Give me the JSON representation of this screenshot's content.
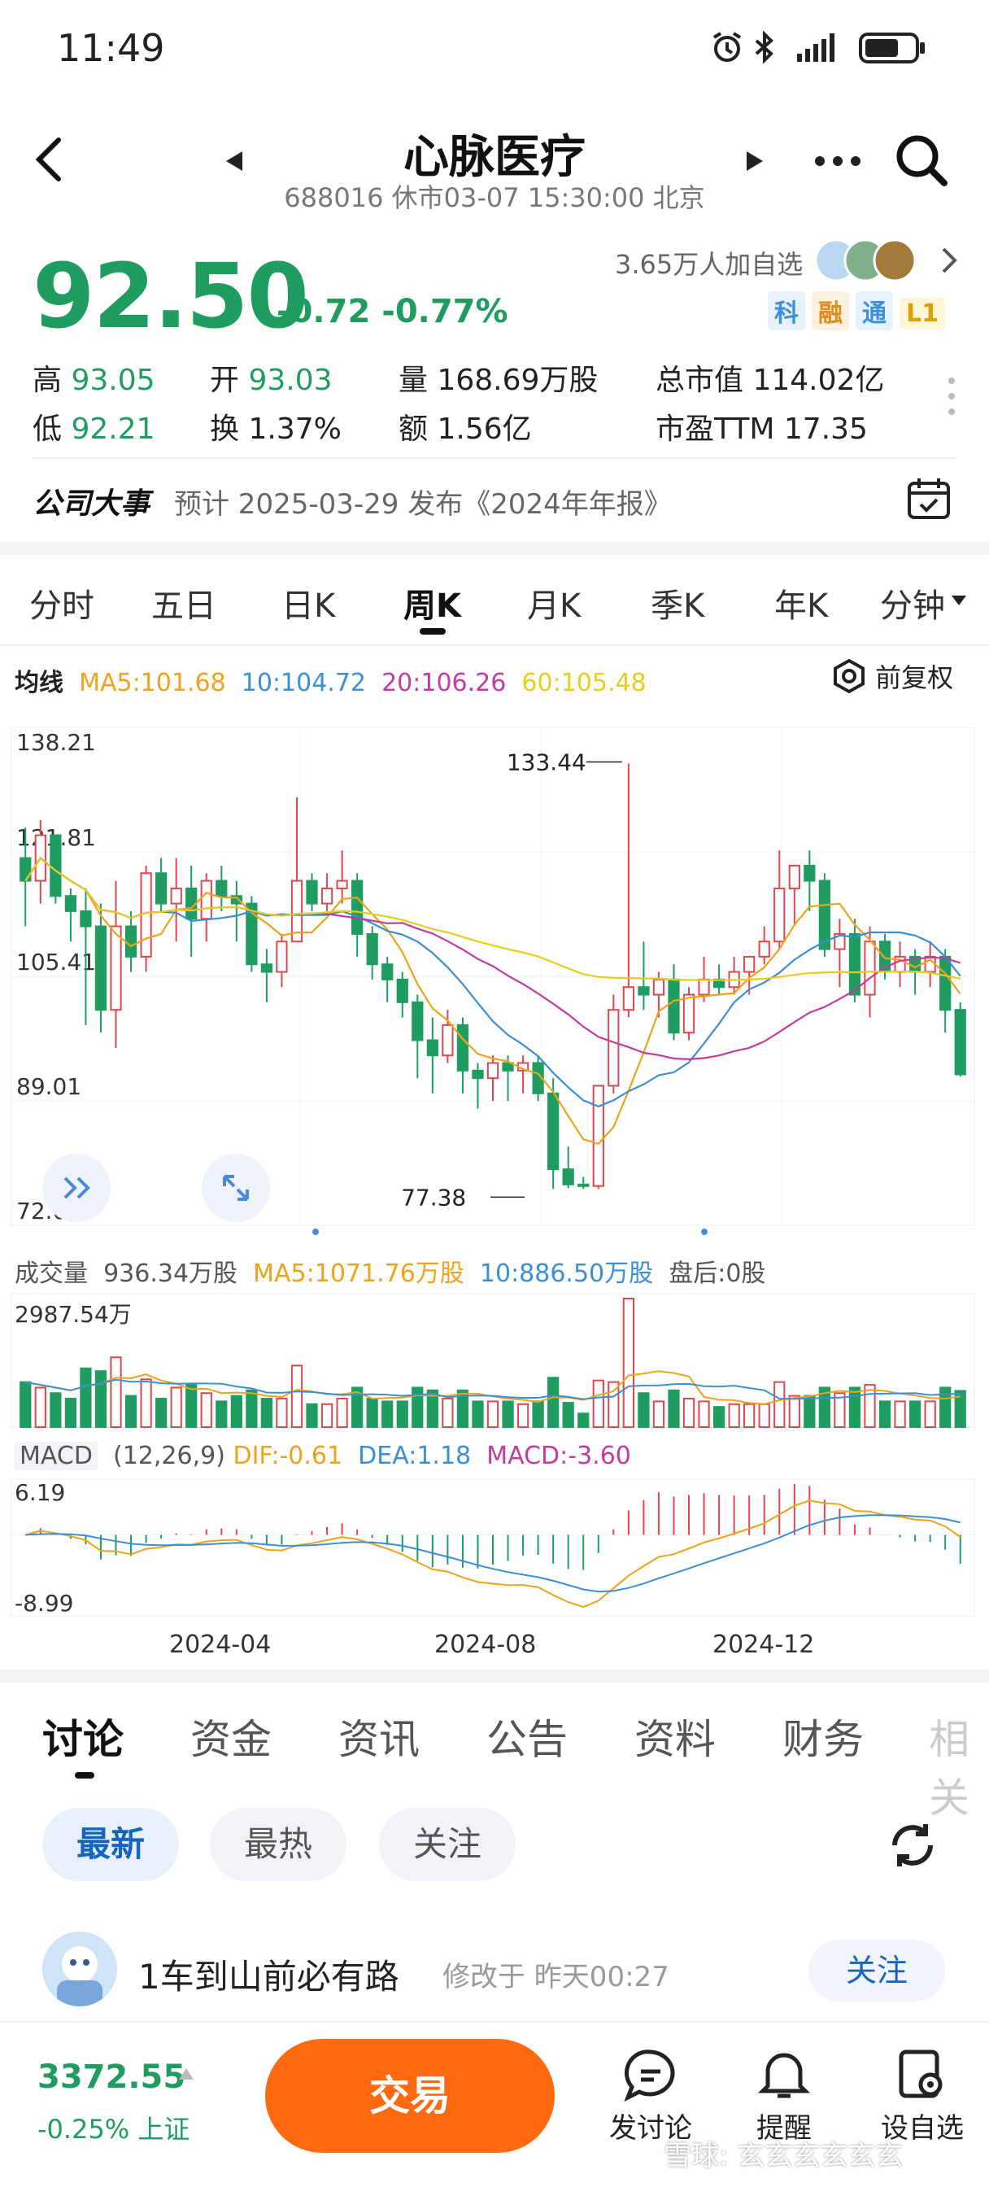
{
  "status_bar": {
    "time": "11:49"
  },
  "header": {
    "title": "心脉医疗",
    "subtitle": "688016 休市03-07 15:30:00 北京"
  },
  "quote": {
    "price": "92.50",
    "change": "-0.72 -0.77%",
    "followers": "3.65万人加自选",
    "tags": [
      "科",
      "融",
      "通",
      "L1"
    ],
    "high_label": "高",
    "high": "93.05",
    "open_label": "开",
    "open": "93.03",
    "volume_label": "量",
    "volume": "168.69万股",
    "mktcap_label": "总市值",
    "mktcap": "114.02亿",
    "low_label": "低",
    "low": "92.21",
    "turnover_label": "换",
    "turnover": "1.37%",
    "amount_label": "额",
    "amount": "1.56亿",
    "pe_label": "市盈TTM",
    "pe": "17.35"
  },
  "events": {
    "label": "公司大事",
    "text": "预计 2025-03-29 发布《2024年年报》"
  },
  "period_tabs": [
    "分时",
    "五日",
    "日K",
    "周K",
    "月K",
    "季K",
    "年K",
    "分钟"
  ],
  "active_period": "周K",
  "ma_legend": {
    "title": "均线",
    "ma5": "MA5:101.68",
    "ma10": "10:104.72",
    "ma20": "20:106.26",
    "ma60": "60:105.48",
    "adjust": "前复权"
  },
  "volume_legend": {
    "title": "成交量",
    "vol": "936.34万股",
    "ma5": "MA5:1071.76万股",
    "ma10": "10:886.50万股",
    "after": "盘后:0股",
    "max": "2987.54万"
  },
  "macd_legend": {
    "title": "MACD",
    "params": "(12,26,9)",
    "dif": "DIF:-0.61",
    "dea": "DEA:1.18",
    "macd": "MACD:-3.60",
    "max": "6.19",
    "min": "-8.99"
  },
  "colors": {
    "up": "#e0474c",
    "down": "#1f9d61",
    "ma5": "#f0a21b",
    "ma10": "#3b8fd4",
    "ma20": "#c43b9f",
    "ma60": "#e6cd1e",
    "orange": "#ff6a10"
  },
  "chart_data": {
    "type": "candlestick",
    "period": "weekly",
    "y_ticks": [
      "138.21",
      "121.81",
      "105.41",
      "89.01",
      "72.62"
    ],
    "ylim": [
      72.62,
      138.21
    ],
    "x_ticks": [
      "2024-04",
      "2024-08",
      "2024-12"
    ],
    "annotations": {
      "high": "133.44",
      "low": "77.38"
    },
    "candles": [
      [
        121,
        125,
        112,
        118
      ],
      [
        118,
        126,
        115,
        124
      ],
      [
        124,
        124,
        115,
        116
      ],
      [
        116,
        117,
        110,
        114
      ],
      [
        114,
        117,
        99,
        112
      ],
      [
        112,
        115,
        98,
        101
      ],
      [
        101,
        118,
        96,
        112
      ],
      [
        112,
        114,
        106,
        108
      ],
      [
        108,
        120,
        106,
        119
      ],
      [
        119,
        121,
        114,
        115
      ],
      [
        115,
        121,
        110,
        117
      ],
      [
        117,
        120,
        108,
        113
      ],
      [
        113,
        119,
        110,
        118
      ],
      [
        118,
        120,
        114,
        116
      ],
      [
        116,
        118,
        110,
        115
      ],
      [
        115,
        116,
        106,
        107
      ],
      [
        107,
        109,
        102,
        106
      ],
      [
        106,
        111,
        104,
        110
      ],
      [
        110,
        129,
        110,
        118
      ],
      [
        118,
        119,
        114,
        115
      ],
      [
        115,
        119,
        114,
        117
      ],
      [
        117,
        122,
        115,
        118
      ],
      [
        118,
        119,
        108,
        111
      ],
      [
        111,
        112,
        105,
        107
      ],
      [
        107,
        108,
        102,
        105
      ],
      [
        105,
        106,
        100,
        102
      ],
      [
        102,
        103,
        92,
        97
      ],
      [
        97,
        100,
        90,
        95
      ],
      [
        95,
        101,
        94,
        99
      ],
      [
        99,
        100,
        90,
        93
      ],
      [
        93,
        94,
        88,
        92
      ],
      [
        92,
        95,
        89,
        94
      ],
      [
        94,
        95,
        89,
        93
      ],
      [
        93,
        95,
        90,
        94
      ],
      [
        94,
        95,
        89,
        90
      ],
      [
        90,
        92,
        77.4,
        80
      ],
      [
        80,
        83,
        77.5,
        78
      ],
      [
        78,
        79,
        77.4,
        77.8
      ],
      [
        77.8,
        91,
        77.4,
        91
      ],
      [
        91,
        103,
        90,
        101
      ],
      [
        101,
        133.44,
        100,
        104
      ],
      [
        104,
        110,
        101,
        103
      ],
      [
        103,
        106,
        100,
        105
      ],
      [
        105,
        107,
        97,
        98
      ],
      [
        98,
        104,
        97,
        103
      ],
      [
        103,
        108,
        102,
        105
      ],
      [
        105,
        107,
        103,
        104
      ],
      [
        104,
        108,
        103,
        106
      ],
      [
        106,
        108,
        103,
        108
      ],
      [
        108,
        112,
        107,
        110
      ],
      [
        110,
        122,
        109,
        117
      ],
      [
        117,
        120,
        112,
        120
      ],
      [
        120,
        122,
        114,
        118
      ],
      [
        118,
        119,
        108,
        109
      ],
      [
        109,
        113,
        104,
        111
      ],
      [
        111,
        113,
        102,
        103
      ],
      [
        103,
        112,
        100,
        110
      ],
      [
        110,
        111,
        105,
        106
      ],
      [
        106,
        110,
        104,
        108
      ],
      [
        108,
        109,
        103,
        106
      ],
      [
        106,
        110,
        104,
        108
      ],
      [
        108,
        109,
        98,
        101
      ],
      [
        101,
        102,
        92.2,
        92.5
      ]
    ],
    "volume_max": 2987.54,
    "macd_range": [
      -8.99,
      6.19
    ]
  },
  "bottom_tabs": [
    "讨论",
    "资金",
    "资讯",
    "公告",
    "资料",
    "财务",
    "相关"
  ],
  "active_bottom_tab": "讨论",
  "filters": [
    "最新",
    "最热",
    "关注"
  ],
  "post": {
    "author": "1车到山前必有路",
    "meta": "修改于 昨天00:27",
    "follow": "关注"
  },
  "bottom_bar": {
    "index_value": "3372.55",
    "index_change": "-0.25% 上证",
    "trade": "交易",
    "discuss": "发讨论",
    "remind": "提醒",
    "watch": "设自选",
    "watermark": "雪球: 玄玄玄玄玄玄"
  }
}
